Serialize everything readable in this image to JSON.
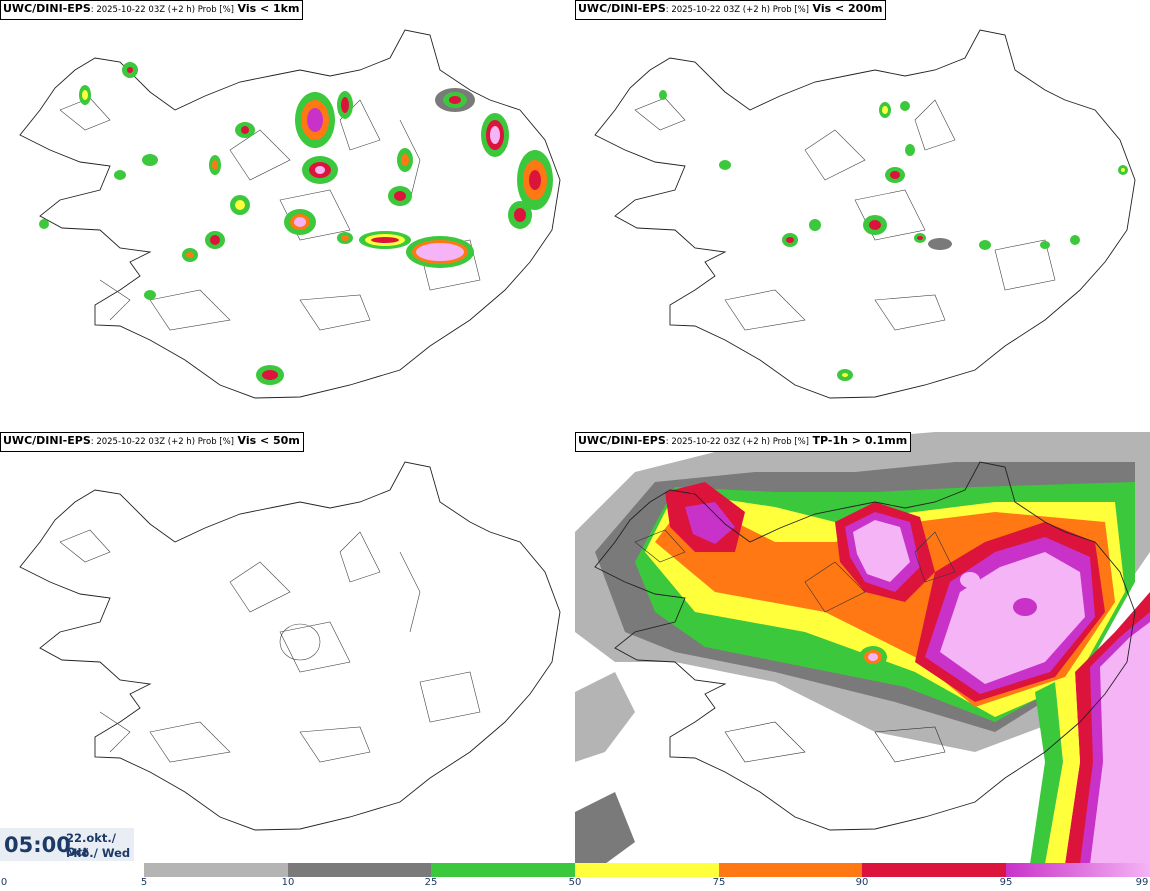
{
  "panels": [
    {
      "source": "UWC/DINI-EPS",
      "meta": ": 2025-10-22 03Z (+2 h) Prob [%]",
      "variable": "Vis < 1km"
    },
    {
      "source": "UWC/DINI-EPS",
      "meta": ": 2025-10-22 03Z (+2 h) Prob [%]",
      "variable": "Vis < 200m"
    },
    {
      "source": "UWC/DINI-EPS",
      "meta": ": 2025-10-22 03Z (+2 h) Prob [%]",
      "variable": "Vis < 50m"
    },
    {
      "source": "UWC/DINI-EPS",
      "meta": ": 2025-10-22 03Z (+2 h) Prob [%]",
      "variable": "TP-1h > 0.1mm"
    }
  ],
  "time": {
    "hour": "05:00",
    "date_line": "22.okt./ Oct",
    "day_line": "Mið./ Wed"
  },
  "colorbar": {
    "ticks": [
      "0",
      "5",
      "10",
      "25",
      "50",
      "75",
      "90",
      "95",
      "99"
    ],
    "colors": [
      "#ffffff",
      "#b4b4b4",
      "#7a7a7a",
      "#3cc83c",
      "#ffff3c",
      "#ff7814",
      "#dc143c",
      "#c832c8",
      "#f5b4f5"
    ]
  }
}
